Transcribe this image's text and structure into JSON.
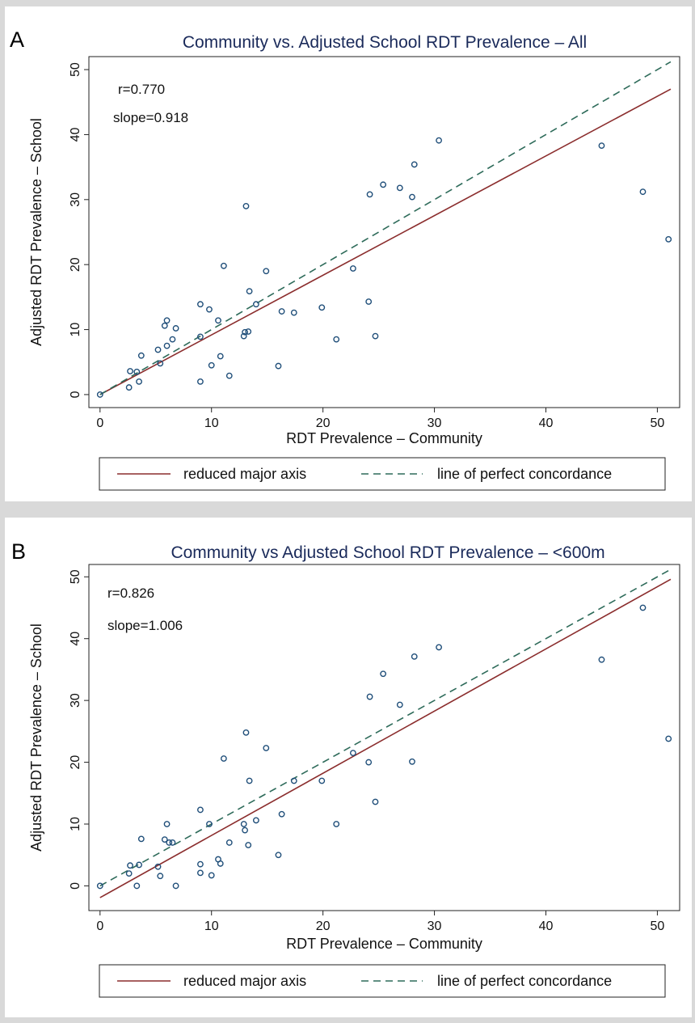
{
  "colors": {
    "rma": "#8b2d2d",
    "concordance": "#2e6b5a",
    "points": "#1f4e79",
    "title": "#1a2a5a"
  },
  "chart_data": [
    {
      "type": "scatter",
      "panel": "A",
      "title": "Community vs. Adjusted School RDT Prevalence – All",
      "xlabel": "RDT Prevalence – Community",
      "ylabel": "Adjusted RDT Prevalence – School",
      "xlim": [
        -1,
        52
      ],
      "ylim": [
        -2,
        52
      ],
      "xticks": [
        0,
        10,
        20,
        30,
        40,
        50
      ],
      "yticks": [
        0,
        10,
        20,
        30,
        40,
        50
      ],
      "annotations": [
        "r=0.770",
        "slope=0.918"
      ],
      "points": [
        [
          0,
          0
        ],
        [
          2.6,
          1.1
        ],
        [
          2.7,
          3.6
        ],
        [
          3.3,
          3.5
        ],
        [
          3.5,
          2.0
        ],
        [
          3.7,
          6.0
        ],
        [
          5.2,
          6.9
        ],
        [
          5.4,
          4.8
        ],
        [
          5.8,
          10.6
        ],
        [
          6.0,
          11.4
        ],
        [
          6.0,
          7.5
        ],
        [
          6.5,
          8.5
        ],
        [
          6.8,
          10.2
        ],
        [
          9.0,
          2.0
        ],
        [
          9.0,
          13.9
        ],
        [
          9.0,
          8.9
        ],
        [
          9.8,
          13.1
        ],
        [
          10.0,
          4.5
        ],
        [
          10.6,
          11.4
        ],
        [
          10.8,
          5.9
        ],
        [
          11.1,
          19.8
        ],
        [
          11.6,
          2.9
        ],
        [
          12.9,
          9.0
        ],
        [
          13.0,
          9.6
        ],
        [
          13.1,
          29.0
        ],
        [
          13.3,
          9.7
        ],
        [
          13.4,
          15.9
        ],
        [
          14.0,
          13.9
        ],
        [
          14.9,
          19.0
        ],
        [
          16.0,
          4.4
        ],
        [
          16.3,
          12.8
        ],
        [
          17.4,
          12.6
        ],
        [
          19.9,
          13.4
        ],
        [
          21.2,
          8.5
        ],
        [
          22.7,
          19.4
        ],
        [
          24.1,
          14.3
        ],
        [
          24.2,
          30.8
        ],
        [
          24.7,
          9.0
        ],
        [
          25.4,
          32.3
        ],
        [
          26.9,
          31.8
        ],
        [
          28.0,
          30.4
        ],
        [
          28.2,
          35.4
        ],
        [
          30.4,
          39.1
        ],
        [
          45.0,
          38.3
        ],
        [
          48.7,
          31.2
        ],
        [
          51.0,
          23.9
        ]
      ],
      "series": [
        {
          "name": "reduced major axis",
          "style": "solid",
          "x": [
            0,
            51.2
          ],
          "y": [
            0,
            47.0
          ]
        },
        {
          "name": "line of perfect concordance",
          "style": "dashed",
          "x": [
            0,
            51.2
          ],
          "y": [
            0,
            51.2
          ]
        }
      ],
      "legend": {
        "position": "bottom",
        "labels": [
          "reduced major axis",
          "line of perfect concordance"
        ]
      }
    },
    {
      "type": "scatter",
      "panel": "B",
      "title": "Community vs Adjusted School RDT Prevalence – <600m",
      "xlabel": "RDT Prevalence – Community",
      "ylabel": "Adjusted RDT Prevalence – School",
      "xlim": [
        -1,
        52
      ],
      "ylim": [
        -4,
        52
      ],
      "xticks": [
        0,
        10,
        20,
        30,
        40,
        50
      ],
      "yticks": [
        0,
        10,
        20,
        30,
        40,
        50
      ],
      "annotations": [
        "r=0.826",
        "slope=1.006"
      ],
      "points": [
        [
          0,
          0
        ],
        [
          2.6,
          2.0
        ],
        [
          2.7,
          3.3
        ],
        [
          3.3,
          0
        ],
        [
          3.5,
          3.4
        ],
        [
          3.7,
          7.6
        ],
        [
          5.2,
          3.1
        ],
        [
          5.4,
          1.6
        ],
        [
          5.8,
          7.5
        ],
        [
          6.0,
          10.0
        ],
        [
          6.2,
          7.0
        ],
        [
          6.5,
          7.0
        ],
        [
          6.8,
          0
        ],
        [
          9.0,
          12.3
        ],
        [
          9.0,
          3.5
        ],
        [
          9.0,
          2.1
        ],
        [
          9.8,
          10.0
        ],
        [
          10.0,
          1.7
        ],
        [
          10.6,
          4.3
        ],
        [
          10.8,
          3.6
        ],
        [
          11.1,
          20.6
        ],
        [
          11.6,
          7.0
        ],
        [
          12.9,
          10.0
        ],
        [
          13.0,
          9.0
        ],
        [
          13.1,
          24.8
        ],
        [
          13.3,
          6.6
        ],
        [
          13.4,
          17.0
        ],
        [
          14.0,
          10.6
        ],
        [
          14.9,
          22.3
        ],
        [
          16.0,
          5.0
        ],
        [
          16.3,
          11.6
        ],
        [
          17.4,
          17.0
        ],
        [
          19.9,
          17.0
        ],
        [
          21.2,
          10.0
        ],
        [
          22.7,
          21.5
        ],
        [
          24.1,
          20.0
        ],
        [
          24.2,
          30.6
        ],
        [
          24.7,
          13.6
        ],
        [
          25.4,
          34.3
        ],
        [
          26.9,
          29.3
        ],
        [
          28.0,
          20.1
        ],
        [
          28.2,
          37.1
        ],
        [
          30.4,
          38.6
        ],
        [
          45.0,
          36.6
        ],
        [
          48.7,
          45.0
        ],
        [
          51.0,
          23.8
        ]
      ],
      "series": [
        {
          "name": "reduced major axis",
          "style": "solid",
          "x": [
            0,
            51.2
          ],
          "y": [
            -1.9,
            49.6
          ]
        },
        {
          "name": "line of perfect concordance",
          "style": "dashed",
          "x": [
            0,
            51.2
          ],
          "y": [
            0,
            51.2
          ]
        }
      ],
      "legend": {
        "position": "bottom",
        "labels": [
          "reduced major axis",
          "line of perfect concordance"
        ]
      }
    }
  ],
  "panels": [
    {
      "letter": "A"
    },
    {
      "letter": "B"
    }
  ]
}
